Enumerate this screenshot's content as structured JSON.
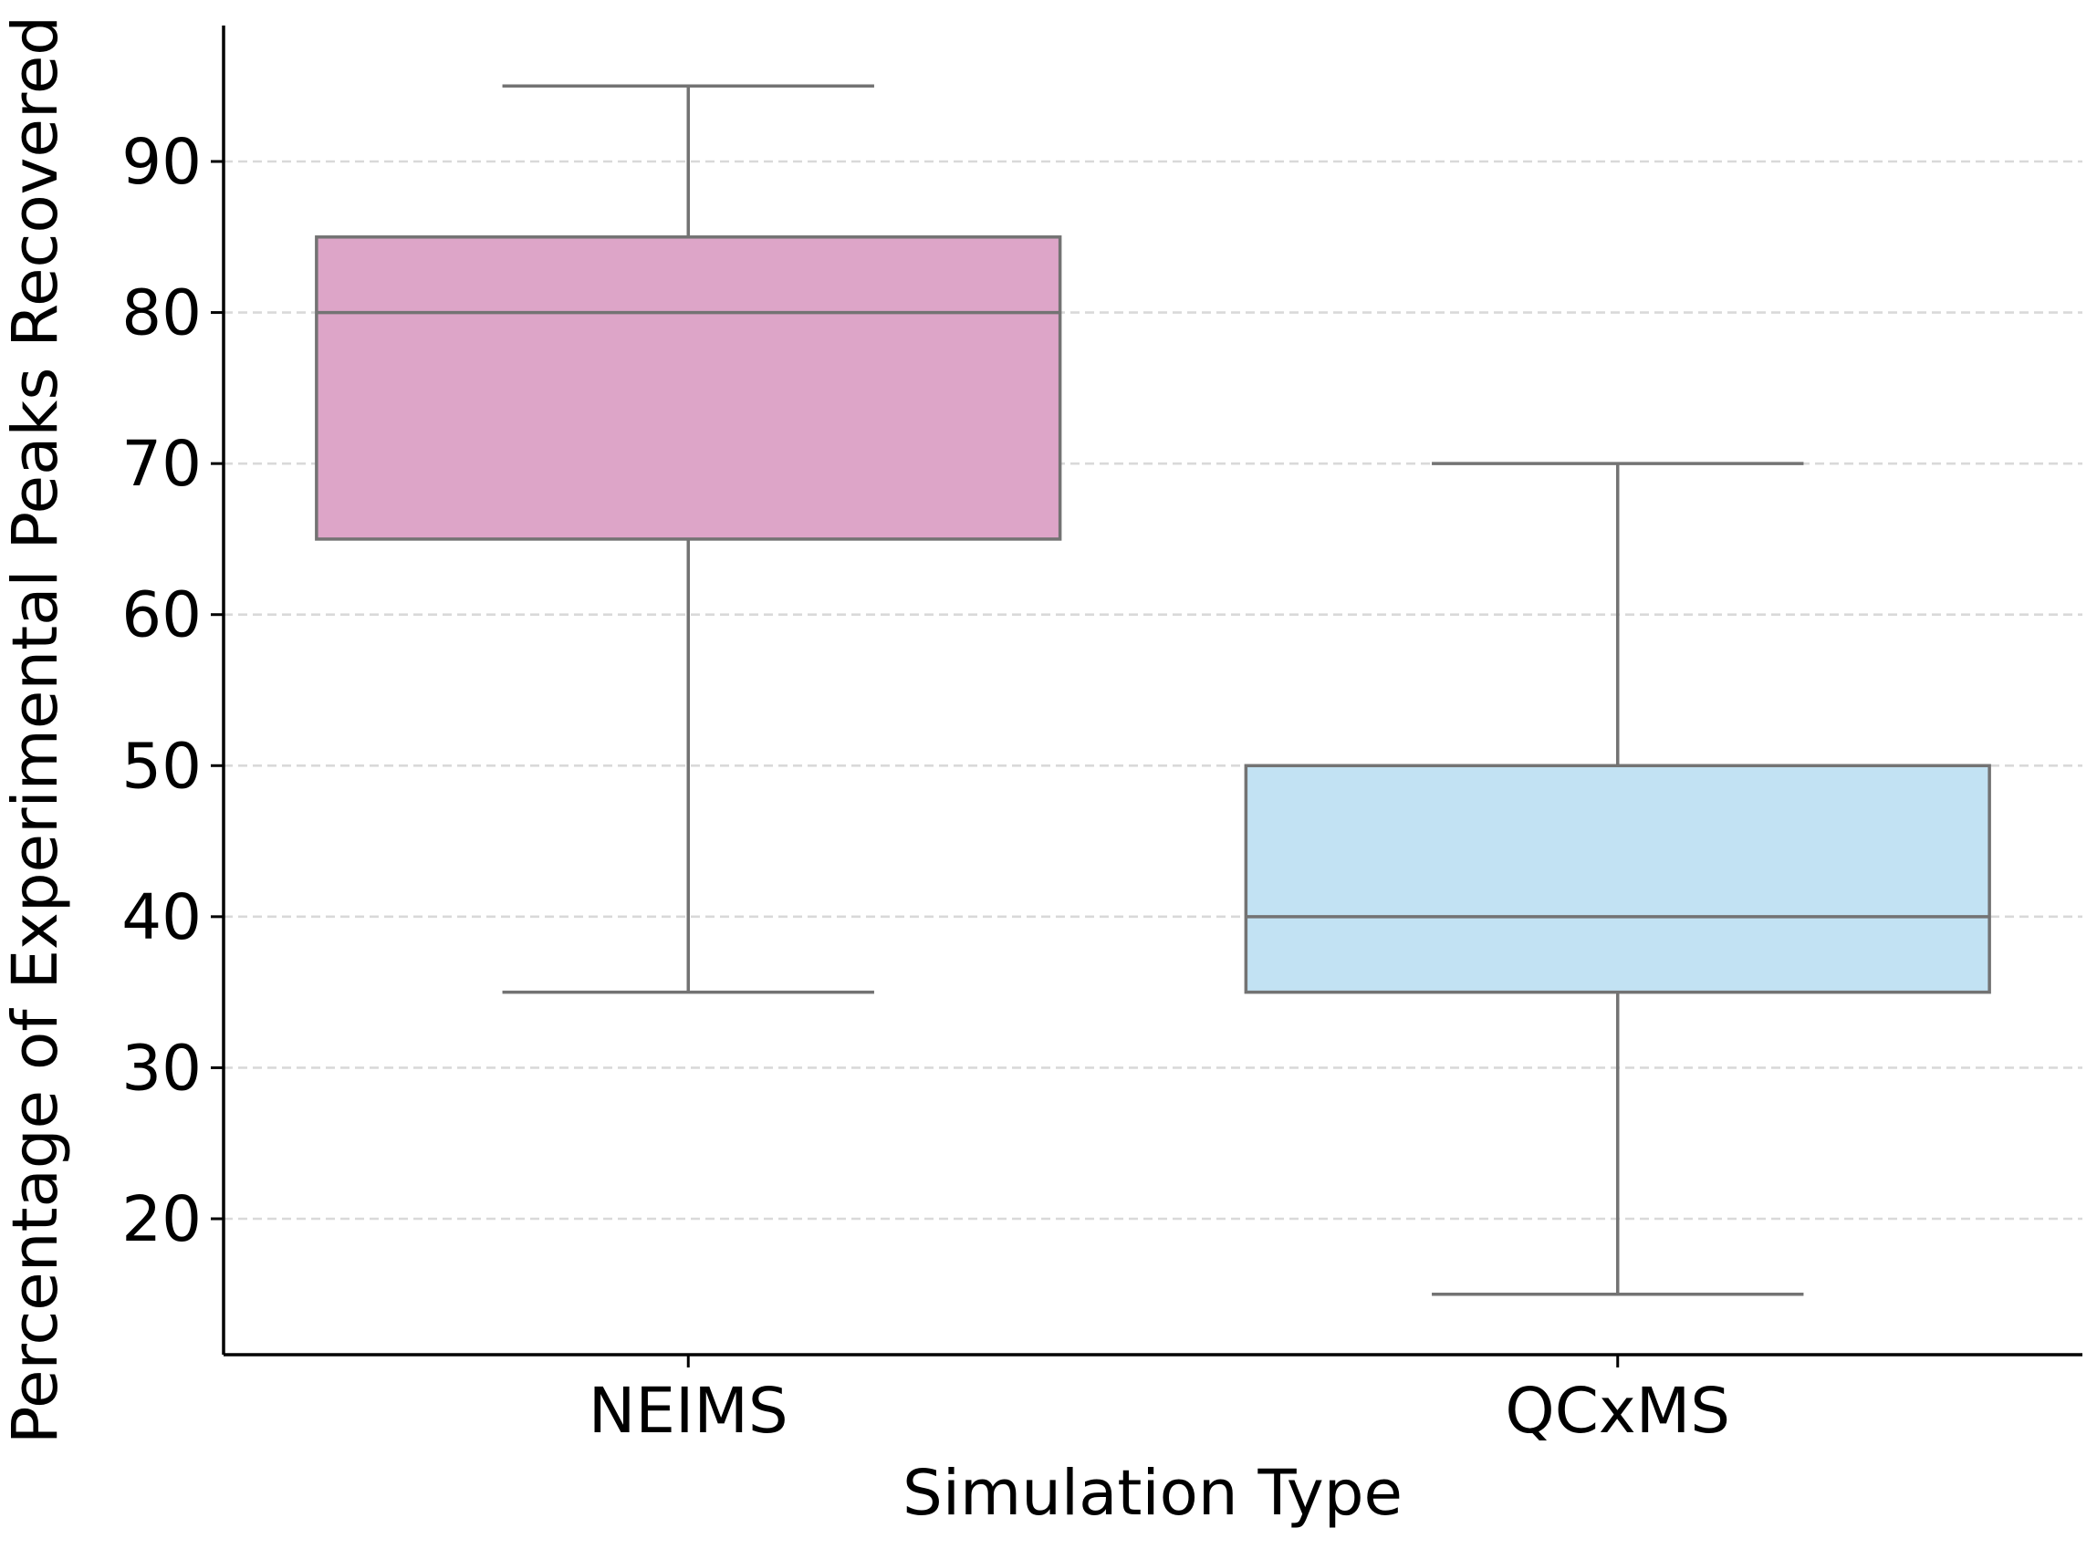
{
  "chart_data": {
    "type": "box",
    "xlabel": "Simulation Type",
    "ylabel": "Percentage of Experimental Peaks Recovered",
    "ylim": [
      11,
      99
    ],
    "yticks": [
      20,
      30,
      40,
      50,
      60,
      70,
      80,
      90
    ],
    "grid": "horizontal dashed",
    "categories": [
      "NEIMS",
      "QCxMS"
    ],
    "boxes": [
      {
        "category": "NEIMS",
        "whisker_low": 35,
        "q1": 65,
        "median": 80,
        "q3": 85,
        "whisker_high": 95,
        "color": "#dda5c8"
      },
      {
        "category": "QCxMS",
        "whisker_low": 15,
        "q1": 35,
        "median": 40,
        "q3": 50,
        "whisker_high": 70,
        "color": "#c2e2f3"
      }
    ],
    "line_color": "#737373"
  }
}
